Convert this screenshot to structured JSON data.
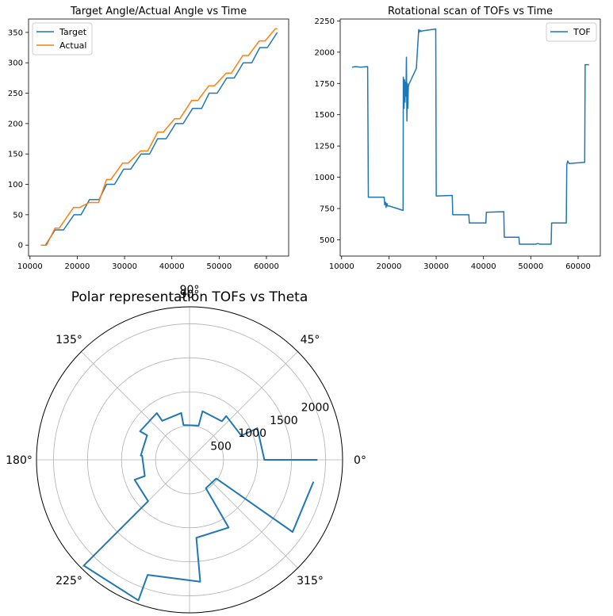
{
  "chart_data": [
    {
      "type": "line",
      "title": "Target Angle/Actual Angle vs Time",
      "xlim": [
        9700,
        64700
      ],
      "ylim": [
        -18,
        372
      ],
      "xticks": [
        10000,
        20000,
        30000,
        40000,
        50000,
        60000
      ],
      "yticks": [
        0,
        50,
        100,
        150,
        200,
        250,
        300,
        350
      ],
      "legend": "upper-left",
      "series": [
        {
          "name": "Target",
          "color": "#1f77b4",
          "x": [
            12300,
            13300,
            15300,
            17100,
            19300,
            20800,
            22600,
            24600,
            26200,
            27900,
            29800,
            31300,
            33500,
            35300,
            37000,
            38800,
            40800,
            42400,
            44400,
            46300,
            47900,
            49600,
            51600,
            53200,
            55100,
            56900,
            58600,
            60200,
            62300
          ],
          "y": [
            0,
            0,
            25,
            25,
            50,
            50,
            75,
            75,
            100,
            100,
            125,
            125,
            150,
            150,
            175,
            175,
            200,
            200,
            225,
            225,
            250,
            250,
            275,
            275,
            300,
            300,
            325,
            325,
            350
          ]
        },
        {
          "name": "Actual",
          "color": "#ff7f0e",
          "x": [
            12300,
            13500,
            15300,
            16200,
            19200,
            20500,
            22500,
            24500,
            26200,
            27100,
            29600,
            30800,
            33400,
            34900,
            37000,
            38200,
            40600,
            41700,
            44200,
            45500,
            47800,
            49000,
            51500,
            52600,
            55000,
            56200,
            58500,
            59700,
            61900,
            62300
          ],
          "y": [
            0,
            0,
            28,
            28,
            62,
            62,
            70,
            70,
            108,
            108,
            135,
            135,
            155,
            155,
            186,
            186,
            208,
            208,
            238,
            238,
            262,
            262,
            283,
            283,
            312,
            312,
            336,
            336,
            356,
            356
          ]
        }
      ]
    },
    {
      "type": "line",
      "title": "Rotational scan of TOFs vs Time",
      "xlim": [
        9700,
        64700
      ],
      "ylim": [
        370,
        2265
      ],
      "xticks": [
        10000,
        20000,
        30000,
        40000,
        50000,
        60000
      ],
      "yticks": [
        500,
        750,
        1000,
        1250,
        1500,
        1750,
        2000,
        2250
      ],
      "legend": "upper-right",
      "series": [
        {
          "name": "TOF",
          "color": "#1f77b4",
          "x": [
            12200,
            13000,
            14000,
            15500,
            15650,
            16500,
            19000,
            19100,
            19300,
            19400,
            19600,
            19700,
            20100,
            23000,
            23050,
            23200,
            23300,
            23400,
            23500,
            23600,
            23700,
            23800,
            23900,
            24000,
            24100,
            24200,
            24300,
            25800,
            26300,
            26400,
            26600,
            26800,
            27000,
            29900,
            30000,
            33400,
            33500,
            36900,
            37000,
            40500,
            40600,
            44300,
            44400,
            47500,
            47600,
            51000,
            51500,
            52000,
            54300,
            54400,
            57500,
            57600,
            57800,
            58100,
            61400,
            61500,
            62300
          ],
          "y": [
            1880,
            1885,
            1880,
            1885,
            840,
            840,
            840,
            780,
            800,
            760,
            790,
            770,
            770,
            735,
            1800,
            1550,
            1780,
            1600,
            1760,
            1650,
            1960,
            1450,
            1750,
            1550,
            1720,
            1740,
            1750,
            1870,
            2180,
            2160,
            2175,
            2165,
            2170,
            2185,
            850,
            855,
            700,
            700,
            635,
            635,
            720,
            725,
            520,
            520,
            465,
            465,
            470,
            465,
            465,
            635,
            635,
            1100,
            1130,
            1110,
            1120,
            1900,
            1900
          ]
        }
      ]
    },
    {
      "type": "polar",
      "title": "Polar representation TOFs vs Theta",
      "rmax": 2250,
      "rticks": [
        500,
        1000,
        1500,
        2000
      ],
      "rtick_labels": [
        "500",
        "1000",
        "1500",
        "2000"
      ],
      "rlabel_angle_deg": 22.5,
      "theta_ticks_deg": [
        0,
        45,
        90,
        135,
        180,
        225,
        270,
        315
      ],
      "theta_tick_labels": [
        "0°",
        "45°",
        "90°",
        "135°",
        "180°",
        "225°",
        "",
        "315°"
      ],
      "series": [
        {
          "name": "",
          "color": "#1f77b4",
          "theta_deg": [
            0,
            0,
            25,
            25,
            50,
            50,
            75,
            75,
            100,
            100,
            125,
            125,
            150,
            150,
            175,
            175,
            200,
            200,
            225,
            225,
            250,
            250,
            275,
            275,
            300,
            300,
            325,
            325,
            350
          ],
          "r": [
            1880,
            1100,
            1100,
            840,
            840,
            740,
            740,
            520,
            520,
            700,
            700,
            840,
            840,
            720,
            720,
            700,
            700,
            860,
            860,
            2200,
            2200,
            1800,
            1800,
            1150,
            1150,
            480,
            480,
            1850,
            1850
          ]
        }
      ]
    }
  ]
}
